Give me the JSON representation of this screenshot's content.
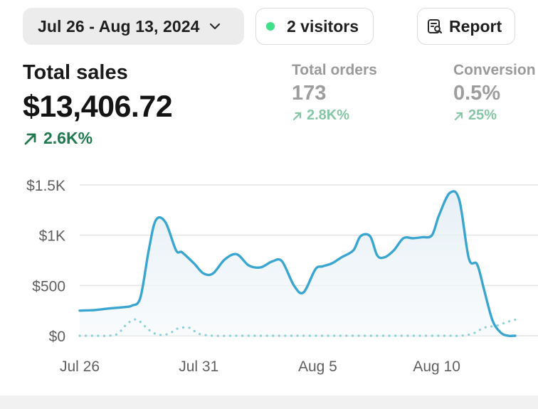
{
  "header": {
    "date_range": "Jul 26 - Aug 13, 2024",
    "visitors": "2 visitors",
    "report_label": "Report"
  },
  "icons": {
    "date_chevron": "chevron-down-icon",
    "visitors_dot": "live-dot-icon",
    "report": "report-search-icon",
    "trend": "arrow-up-right-icon"
  },
  "colors": {
    "live_dot": "#3ee08a",
    "positive_main": "#1e7a4e",
    "positive_muted": "#86c6a6",
    "series_current": "#3aa6cf",
    "series_previous": "#8cd0d8"
  },
  "metrics": {
    "total_sales": {
      "title": "Total sales",
      "value": "$13,406.72",
      "change": "2.6K%"
    },
    "total_orders": {
      "title": "Total orders",
      "value": "173",
      "change": "2.8K%"
    },
    "conversion": {
      "title": "Conversion",
      "value": "0.5%",
      "change": "25%"
    }
  },
  "chart_data": {
    "type": "line",
    "y_ticks": [
      "$1.5K",
      "$1K",
      "$500",
      "$0"
    ],
    "y_tick_values": [
      1500,
      1000,
      500,
      0
    ],
    "ylim": [
      0,
      1500
    ],
    "x_ticks": [
      "Jul 26",
      "Jul 31",
      "Aug 5",
      "Aug 10"
    ],
    "x_tick_positions": [
      0,
      5,
      10,
      15
    ],
    "xlim": [
      0,
      18.3
    ],
    "grid": true,
    "series": [
      {
        "style": "solid-area",
        "x": [
          0,
          0.6,
          1.2,
          1.9,
          2.2,
          2.55,
          2.9,
          3.2,
          3.6,
          4.05,
          4.3,
          4.8,
          5.2,
          5.6,
          6.1,
          6.6,
          7.1,
          7.6,
          8.1,
          8.5,
          9.0,
          9.4,
          9.9,
          10.2,
          10.6,
          11.0,
          11.5,
          11.8,
          12.2,
          12.5,
          12.8,
          13.2,
          13.6,
          14.0,
          14.4,
          14.8,
          15.1,
          15.55,
          15.95,
          16.35,
          16.7,
          17.0,
          17.35,
          17.7,
          18.0,
          18.3
        ],
        "y": [
          250,
          255,
          270,
          285,
          300,
          380,
          850,
          1150,
          1130,
          850,
          830,
          720,
          620,
          620,
          760,
          810,
          700,
          680,
          740,
          740,
          500,
          430,
          660,
          690,
          720,
          780,
          850,
          990,
          990,
          800,
          780,
          850,
          970,
          970,
          980,
          1000,
          1200,
          1420,
          1350,
          770,
          710,
          450,
          150,
          30,
          0,
          0
        ]
      },
      {
        "style": "dotted",
        "x": [
          0,
          0.6,
          1.2,
          1.6,
          2.0,
          2.4,
          2.9,
          3.3,
          3.75,
          4.1,
          4.6,
          5.0,
          5.6,
          6.5,
          7.5,
          8.5,
          9.5,
          10.5,
          11.5,
          12.5,
          13.5,
          14.5,
          15.5,
          16.0,
          16.5,
          17.0,
          17.5,
          18.0,
          18.3
        ],
        "y": [
          0,
          0,
          0,
          20,
          120,
          160,
          60,
          10,
          20,
          70,
          80,
          20,
          0,
          0,
          0,
          0,
          0,
          0,
          0,
          0,
          0,
          0,
          0,
          0,
          20,
          80,
          100,
          140,
          160
        ]
      }
    ]
  }
}
